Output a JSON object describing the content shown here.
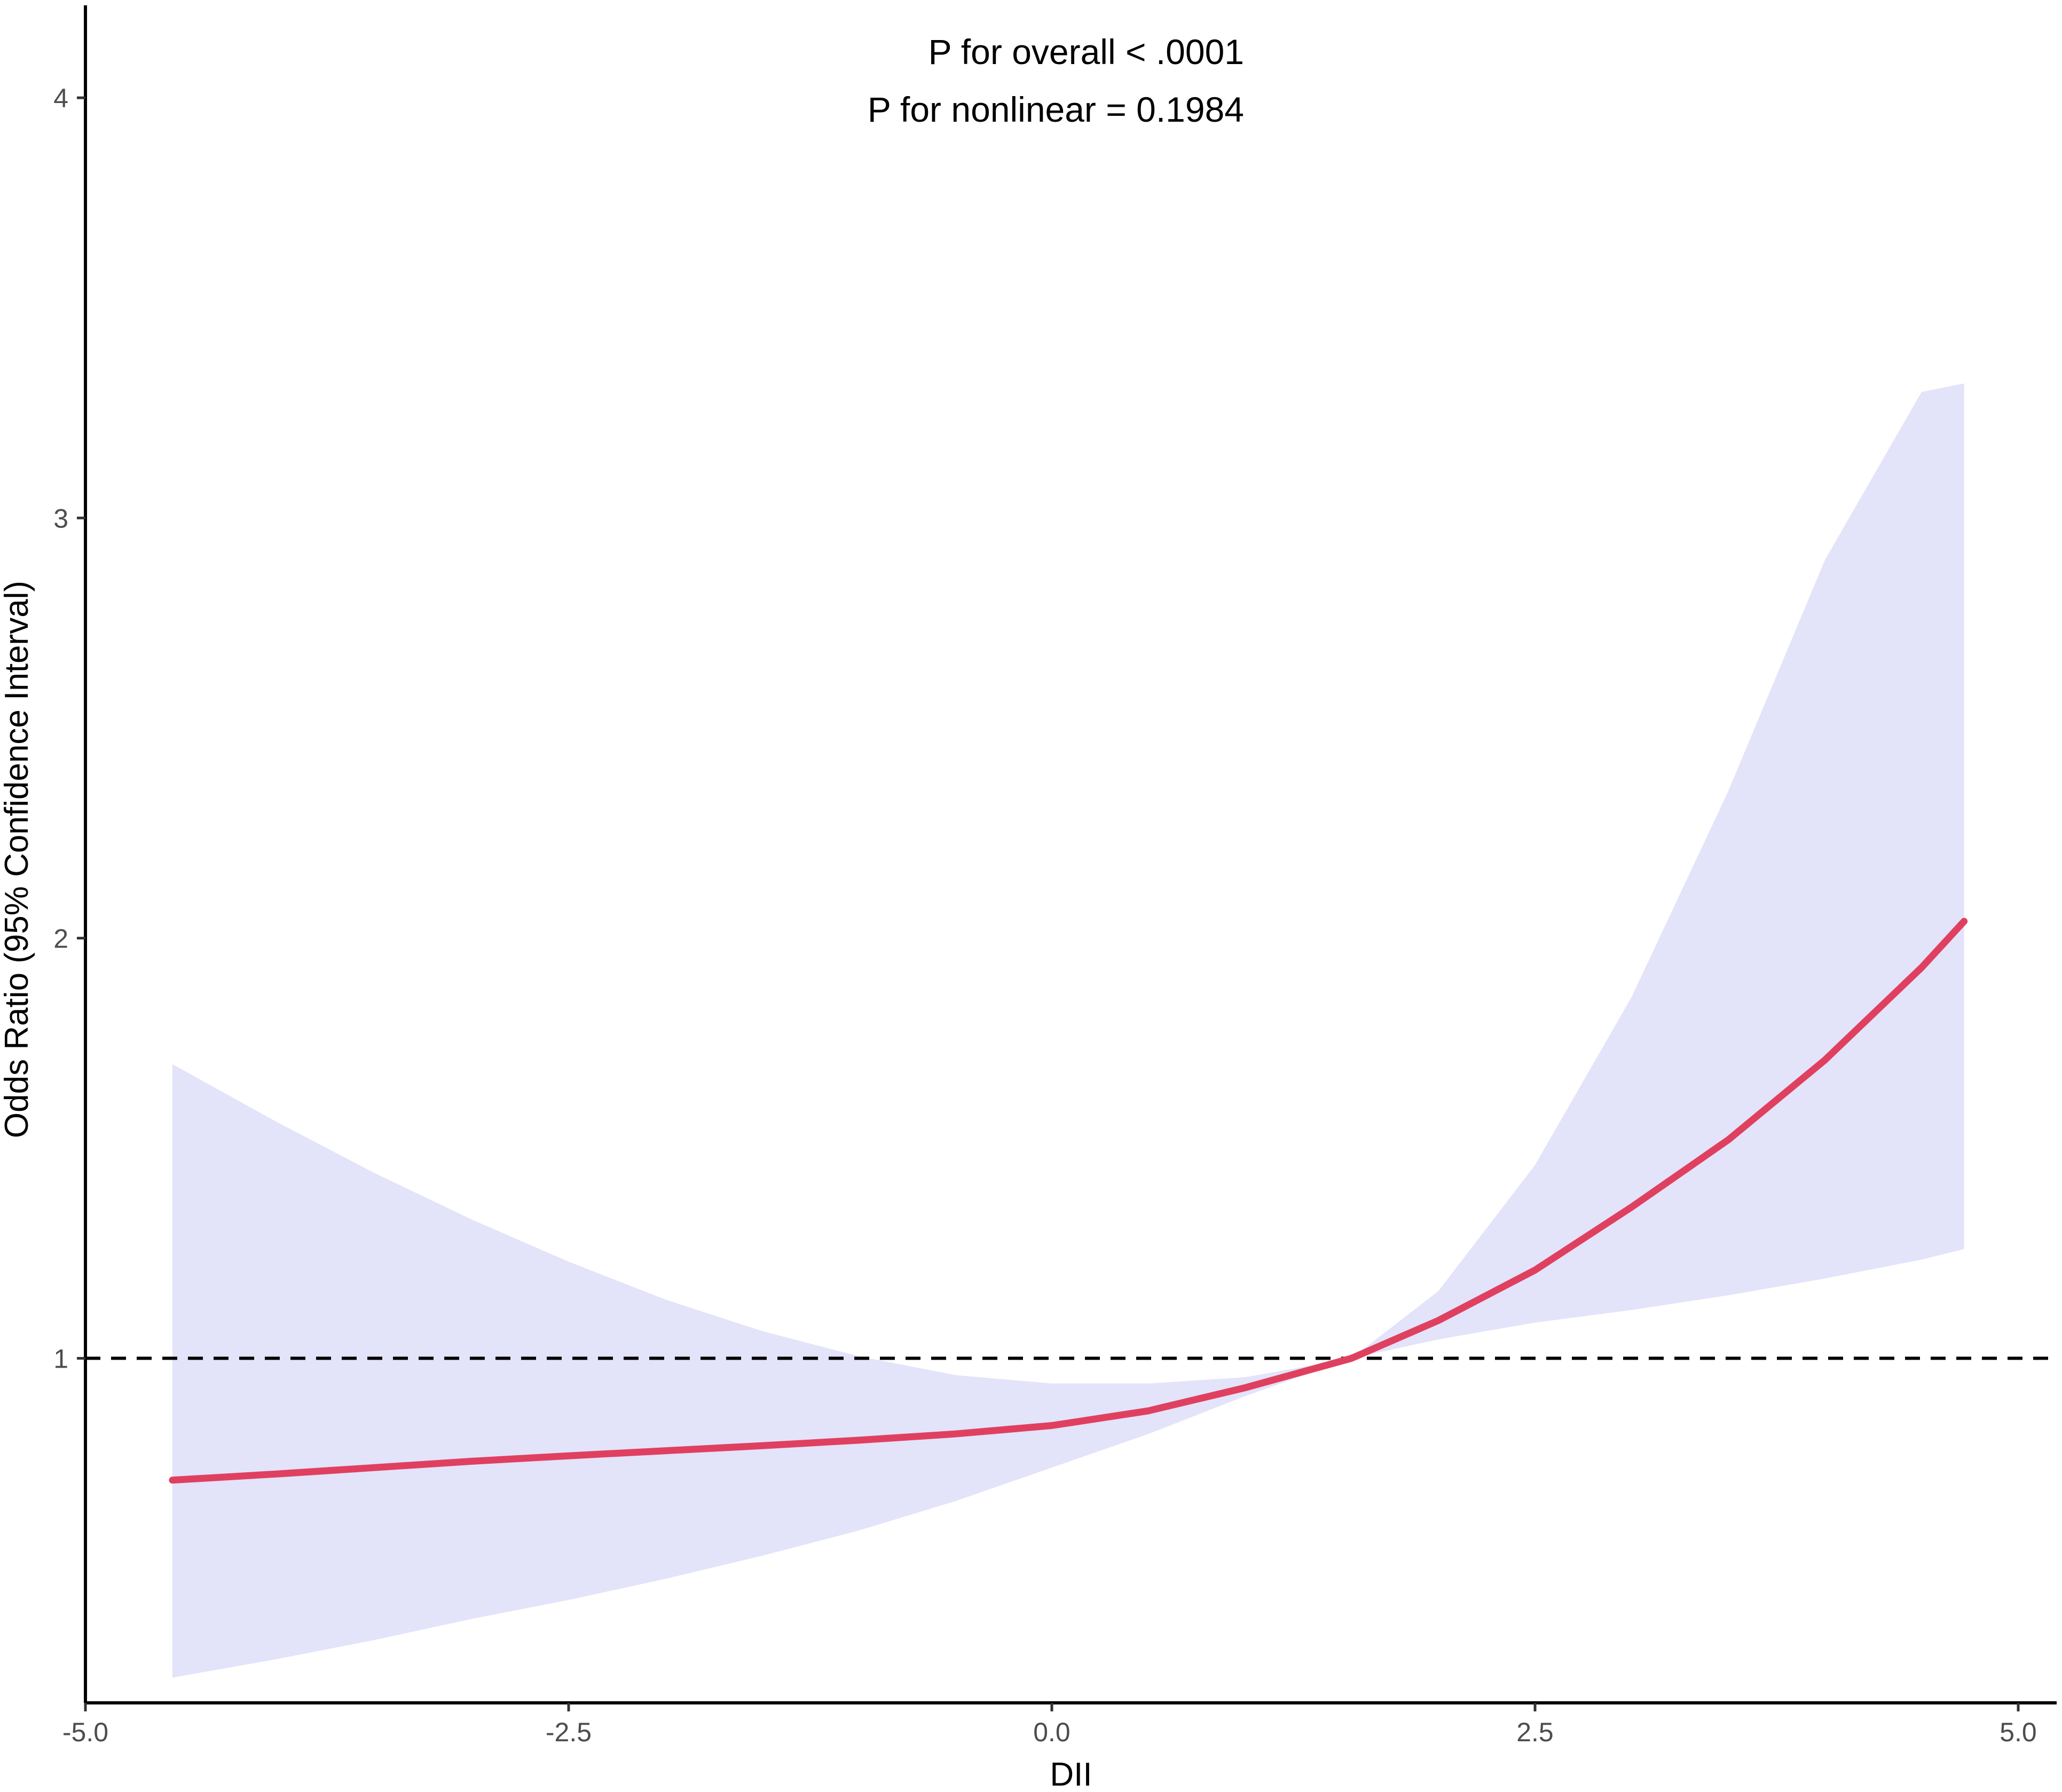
{
  "chart_data": {
    "type": "line",
    "title": "",
    "xlabel": "DII",
    "ylabel": "Odds Ratio (95% Confidence Interval)",
    "xlim": [
      -5.0,
      5.0
    ],
    "ylim": [
      0.18,
      4.22
    ],
    "x_ticks": [
      -5.0,
      -2.5,
      0.0,
      2.5,
      5.0
    ],
    "x_tick_labels": [
      "-5.0",
      "-2.5",
      "0.0",
      "2.5",
      "5.0"
    ],
    "y_ticks": [
      1,
      2,
      3,
      4
    ],
    "y_tick_labels": [
      "1",
      "2",
      "3",
      "4"
    ],
    "grid": false,
    "reference_line": {
      "y": 1,
      "style": "dashed"
    },
    "annotations": [
      "P for overall < .0001",
      "P for nonlinear = 0.1984"
    ],
    "colors": {
      "line": "#e0405f",
      "band": "#e3e3fa",
      "reference": "#000000",
      "axis": "#000000"
    },
    "series": [
      {
        "x": [
          -4.55,
          -4.0,
          -3.5,
          -3.0,
          -2.5,
          -2.0,
          -1.5,
          -1.0,
          -0.5,
          0.0,
          0.5,
          1.0,
          1.55,
          2.0,
          2.5,
          3.0,
          3.5,
          4.0,
          4.5,
          4.72
        ],
        "y": [
          0.71,
          0.725,
          0.74,
          0.755,
          0.768,
          0.78,
          0.792,
          0.805,
          0.82,
          0.84,
          0.875,
          0.93,
          1.0,
          1.09,
          1.21,
          1.36,
          1.52,
          1.71,
          1.93,
          2.04
        ],
        "lower": [
          0.24,
          0.285,
          0.33,
          0.38,
          0.425,
          0.475,
          0.53,
          0.59,
          0.66,
          0.74,
          0.82,
          0.91,
          1.0,
          1.045,
          1.085,
          1.115,
          1.15,
          1.19,
          1.235,
          1.26
        ],
        "upper": [
          1.7,
          1.56,
          1.44,
          1.33,
          1.23,
          1.14,
          1.065,
          1.005,
          0.96,
          0.94,
          0.94,
          0.955,
          1.0,
          1.16,
          1.46,
          1.86,
          2.35,
          2.9,
          3.3,
          3.32
        ]
      }
    ]
  }
}
